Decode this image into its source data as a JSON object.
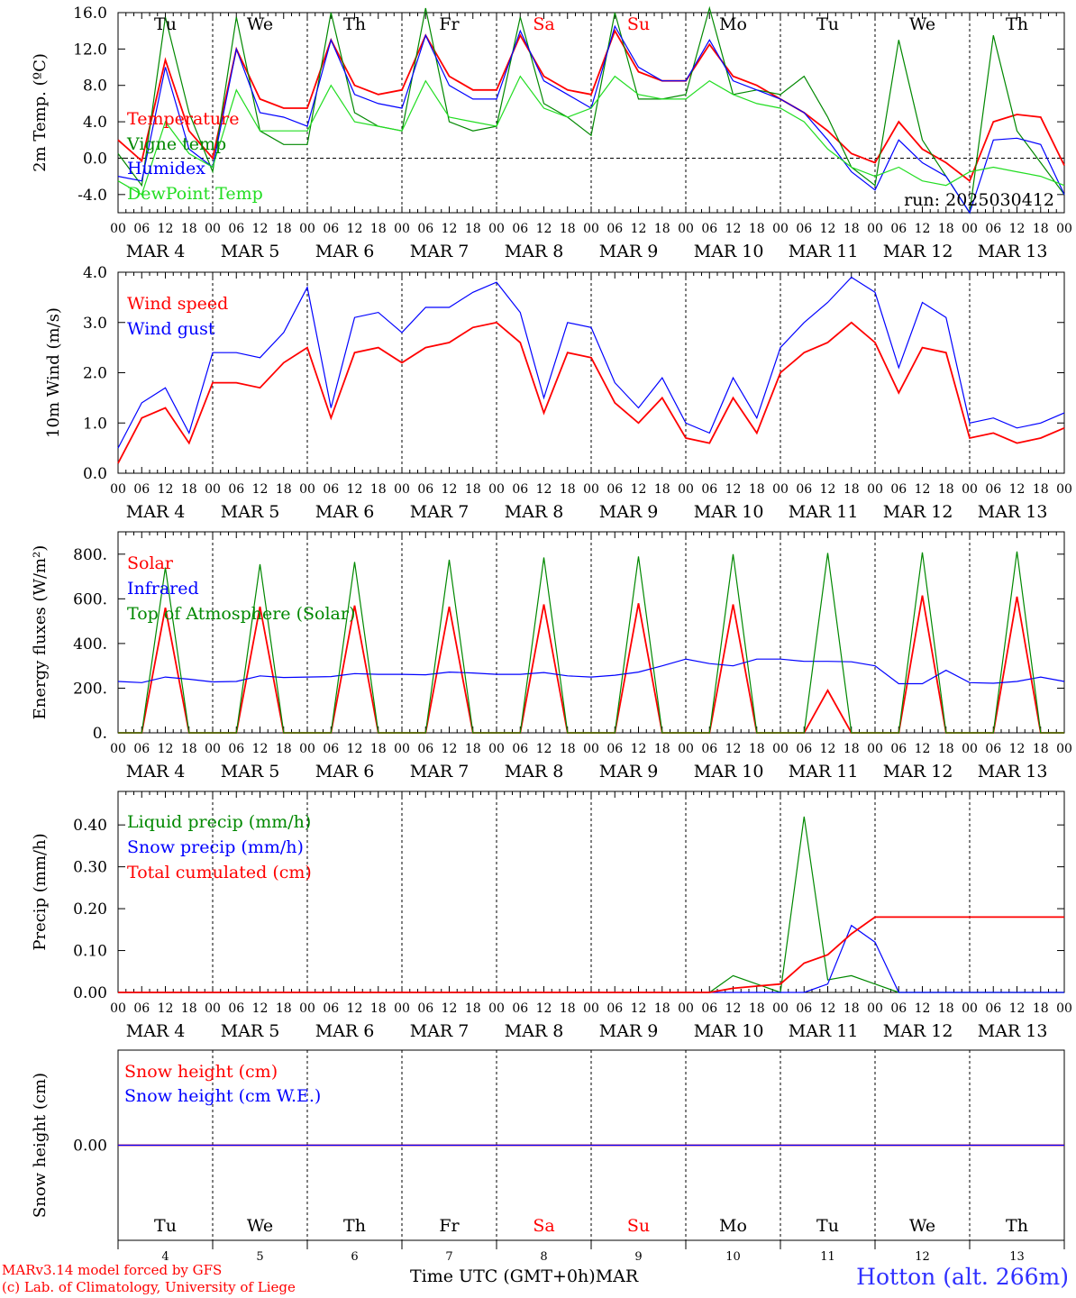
{
  "footer": {
    "model": "MARv3.14 model forced by GFS",
    "lab": "(c) Lab. of Climatology, University of Liege",
    "x_title": "Time UTC (GMT+0h)MAR",
    "station": "Hotton (alt. 266m)"
  },
  "colors": {
    "red": "#ff0000",
    "green": "#008800",
    "blue": "#0000ff",
    "lightgreen": "#22dd22",
    "station": "#3030ff"
  },
  "days": [
    "Tu",
    "We",
    "Th",
    "Fr",
    "Sa",
    "Su",
    "Mo",
    "Tu",
    "We",
    "Th"
  ],
  "weekend_days": [
    "Sa",
    "Su"
  ],
  "dates": [
    "MAR  4",
    "MAR  5",
    "MAR  6",
    "MAR  7",
    "MAR  8",
    "MAR  9",
    "MAR 10",
    "MAR 11",
    "MAR 12",
    "MAR 13"
  ],
  "date_numbers": [
    "4",
    "5",
    "6",
    "7",
    "8",
    "9",
    "10",
    "11",
    "12",
    "13"
  ],
  "hour_ticks": [
    "00",
    "06",
    "12",
    "18"
  ],
  "run_label": "run: 2025030412",
  "chart_data": [
    {
      "type": "line",
      "ylabel": "2m Temp. (ºC)",
      "ylim": [
        -6,
        16
      ],
      "yticks": [
        "16.0",
        "12.0",
        "8.0",
        "4.0",
        "0.0",
        "-4.0"
      ],
      "ytick_values": [
        16,
        12,
        8,
        4,
        0,
        -4
      ],
      "zero_line": true,
      "x": [
        0,
        6,
        12,
        18,
        24,
        30,
        36,
        42,
        48,
        54,
        60,
        66,
        72,
        78,
        84,
        90,
        96,
        102,
        108,
        114,
        120,
        126,
        132,
        138,
        144,
        150,
        156,
        162,
        168,
        174,
        180,
        186,
        192,
        198,
        204,
        210,
        216,
        222,
        228,
        234,
        240
      ],
      "series": [
        {
          "name": "Temperature",
          "color": "red",
          "values": [
            2.0,
            -0.3,
            10.8,
            3.0,
            0.0,
            12.0,
            6.5,
            5.5,
            5.5,
            13.0,
            8.0,
            7.0,
            7.5,
            13.5,
            9.0,
            7.5,
            7.5,
            13.5,
            9.0,
            7.5,
            7.0,
            14.0,
            9.5,
            8.5,
            8.5,
            12.5,
            9.0,
            8.0,
            6.5,
            5.0,
            3.0,
            0.5,
            -0.5,
            4.0,
            1.0,
            -0.5,
            -2.5,
            4.0,
            4.8,
            4.5,
            -0.8
          ]
        },
        {
          "name": "Vigne temp",
          "color": "green",
          "values": [
            0.5,
            -3.0,
            15.5,
            5.0,
            -1.5,
            15.5,
            3.0,
            1.5,
            1.5,
            16.0,
            5.0,
            3.5,
            3.0,
            16.5,
            4.0,
            3.0,
            3.5,
            15.5,
            6.0,
            4.5,
            2.5,
            16.0,
            6.5,
            6.5,
            7.0,
            16.5,
            7.0,
            7.5,
            7.0,
            9.0,
            4.5,
            -1.0,
            -3.0,
            13.0,
            2.0,
            -2.0,
            -6.0,
            13.5,
            3.0,
            -0.5,
            -4.0
          ]
        },
        {
          "name": "Humidex",
          "color": "blue",
          "values": [
            -2.0,
            -2.5,
            10.0,
            1.0,
            -1.0,
            12.0,
            5.0,
            4.5,
            3.5,
            13.0,
            7.0,
            6.0,
            5.5,
            13.5,
            8.0,
            6.5,
            6.5,
            14.0,
            8.5,
            7.0,
            5.5,
            14.5,
            10.0,
            8.5,
            8.5,
            13.0,
            8.5,
            7.5,
            6.5,
            5.0,
            2.0,
            -1.5,
            -3.5,
            2.0,
            -0.5,
            -2.0,
            -6.0,
            2.0,
            2.2,
            1.5,
            -4.0
          ]
        },
        {
          "name": "DewPoint Temp",
          "color": "lightgreen",
          "values": [
            -2.5,
            -4.0,
            4.0,
            0.5,
            -1.0,
            7.5,
            3.0,
            3.0,
            3.0,
            8.0,
            4.0,
            3.5,
            3.0,
            8.5,
            4.5,
            4.0,
            3.5,
            9.0,
            5.5,
            4.5,
            5.5,
            9.0,
            7.0,
            6.5,
            6.5,
            8.5,
            7.0,
            6.0,
            5.5,
            4.0,
            1.0,
            -1.0,
            -2.0,
            -1.0,
            -2.5,
            -3.0,
            -1.5,
            -1.0,
            -1.5,
            -2.0,
            -3.0
          ]
        }
      ]
    },
    {
      "type": "line",
      "ylabel": "10m Wind (m/s)",
      "ylim": [
        0,
        4
      ],
      "yticks": [
        "4.0",
        "3.0",
        "2.0",
        "1.0",
        "0.0"
      ],
      "ytick_values": [
        4,
        3,
        2,
        1,
        0
      ],
      "x": [
        0,
        6,
        12,
        18,
        24,
        30,
        36,
        42,
        48,
        54,
        60,
        66,
        72,
        78,
        84,
        90,
        96,
        102,
        108,
        114,
        120,
        126,
        132,
        138,
        144,
        150,
        156,
        162,
        168,
        174,
        180,
        186,
        192,
        198,
        204,
        210,
        216,
        222,
        228,
        234,
        240
      ],
      "series": [
        {
          "name": "Wind speed",
          "color": "red",
          "values": [
            0.2,
            1.1,
            1.3,
            0.6,
            1.8,
            1.8,
            1.7,
            2.2,
            2.5,
            1.1,
            2.4,
            2.5,
            2.2,
            2.5,
            2.6,
            2.9,
            3.0,
            2.6,
            1.2,
            2.4,
            2.3,
            1.4,
            1.0,
            1.5,
            0.7,
            0.6,
            1.5,
            0.8,
            2.0,
            2.4,
            2.6,
            3.0,
            2.6,
            1.6,
            2.5,
            2.4,
            0.7,
            0.8,
            0.6,
            0.7,
            0.9
          ]
        },
        {
          "name": "Wind gust",
          "color": "blue",
          "values": [
            0.5,
            1.4,
            1.7,
            0.8,
            2.4,
            2.4,
            2.3,
            2.8,
            3.7,
            1.3,
            3.1,
            3.2,
            2.8,
            3.3,
            3.3,
            3.6,
            3.8,
            3.2,
            1.5,
            3.0,
            2.9,
            1.8,
            1.3,
            1.9,
            1.0,
            0.8,
            1.9,
            1.1,
            2.5,
            3.0,
            3.4,
            3.9,
            3.6,
            2.1,
            3.4,
            3.1,
            1.0,
            1.1,
            0.9,
            1.0,
            1.2
          ]
        }
      ]
    },
    {
      "type": "line",
      "ylabel": "Energy fluxes (W/m²)",
      "ylim": [
        0,
        900
      ],
      "yticks": [
        "800.",
        "600.",
        "400.",
        "200.",
        "0."
      ],
      "ytick_values": [
        800,
        600,
        400,
        200,
        0
      ],
      "x": [
        0,
        6,
        12,
        18,
        24,
        30,
        36,
        42,
        48,
        54,
        60,
        66,
        72,
        78,
        84,
        90,
        96,
        102,
        108,
        114,
        120,
        126,
        132,
        138,
        144,
        150,
        156,
        162,
        168,
        174,
        180,
        186,
        192,
        198,
        204,
        210,
        216,
        222,
        228,
        234,
        240
      ],
      "series": [
        {
          "name": "Solar",
          "color": "red",
          "values": [
            0,
            0,
            560,
            0,
            0,
            0,
            565,
            0,
            0,
            0,
            570,
            0,
            0,
            0,
            565,
            0,
            0,
            0,
            575,
            0,
            0,
            0,
            580,
            0,
            0,
            0,
            575,
            0,
            0,
            0,
            190,
            0,
            0,
            0,
            615,
            0,
            0,
            0,
            610,
            0,
            0
          ]
        },
        {
          "name": "Infrared",
          "color": "blue",
          "values": [
            230,
            225,
            250,
            240,
            228,
            230,
            255,
            248,
            250,
            252,
            265,
            262,
            262,
            260,
            272,
            268,
            262,
            262,
            270,
            255,
            250,
            258,
            272,
            300,
            330,
            310,
            300,
            330,
            330,
            320,
            320,
            318,
            300,
            220,
            220,
            280,
            225,
            222,
            230,
            250,
            230
          ]
        },
        {
          "name": "Top of Atmosphere (Solar)",
          "color": "green",
          "values": [
            0,
            0,
            740,
            0,
            0,
            0,
            755,
            0,
            0,
            0,
            765,
            0,
            0,
            0,
            775,
            0,
            0,
            0,
            785,
            0,
            0,
            0,
            790,
            0,
            0,
            0,
            800,
            0,
            0,
            0,
            805,
            0,
            0,
            0,
            808,
            0,
            0,
            0,
            812,
            0,
            0
          ]
        }
      ]
    },
    {
      "type": "line",
      "ylabel": "Precip (mm/h)",
      "ylim": [
        0,
        0.48
      ],
      "yticks": [
        "0.40",
        "0.30",
        "0.20",
        "0.10",
        "0.00"
      ],
      "ytick_values": [
        0.4,
        0.3,
        0.2,
        0.1,
        0
      ],
      "x": [
        0,
        6,
        12,
        18,
        24,
        30,
        36,
        42,
        48,
        54,
        60,
        66,
        72,
        78,
        84,
        90,
        96,
        102,
        108,
        114,
        120,
        126,
        132,
        138,
        144,
        150,
        156,
        162,
        168,
        174,
        180,
        186,
        192,
        198,
        204,
        210,
        216,
        222,
        228,
        234,
        240
      ],
      "series": [
        {
          "name": "Liquid precip (mm/h)",
          "color": "green",
          "values": [
            0,
            0,
            0,
            0,
            0,
            0,
            0,
            0,
            0,
            0,
            0,
            0,
            0,
            0,
            0,
            0,
            0,
            0,
            0,
            0,
            0,
            0,
            0,
            0,
            0,
            0,
            0.04,
            0.02,
            0.0,
            0.42,
            0.03,
            0.04,
            0.02,
            0,
            0,
            0,
            0,
            0,
            0,
            0,
            0
          ]
        },
        {
          "name": "Snow precip (mm/h)",
          "color": "blue",
          "values": [
            0,
            0,
            0,
            0,
            0,
            0,
            0,
            0,
            0,
            0,
            0,
            0,
            0,
            0,
            0,
            0,
            0,
            0,
            0,
            0,
            0,
            0,
            0,
            0,
            0,
            0,
            0,
            0,
            0,
            0,
            0.02,
            0.16,
            0.12,
            0,
            0,
            0,
            0,
            0,
            0,
            0,
            0
          ]
        },
        {
          "name": "Total cumulated (cm)",
          "color": "red",
          "values": [
            0,
            0,
            0,
            0,
            0,
            0,
            0,
            0,
            0,
            0,
            0,
            0,
            0,
            0,
            0,
            0,
            0,
            0,
            0,
            0,
            0,
            0,
            0,
            0,
            0,
            0,
            0.01,
            0.015,
            0.02,
            0.07,
            0.09,
            0.14,
            0.18,
            0.18,
            0.18,
            0.18,
            0.18,
            0.18,
            0.18,
            0.18,
            0.18
          ]
        }
      ]
    },
    {
      "type": "line",
      "ylabel": "Snow height (cm)",
      "ylim": [
        -1,
        1
      ],
      "yticks": [
        "0.00"
      ],
      "ytick_values": [
        0
      ],
      "x": [
        0,
        240
      ],
      "series": [
        {
          "name": "Snow height (cm)",
          "color": "red",
          "values": [
            0,
            0
          ]
        },
        {
          "name": "Snow height (cm W.E.)",
          "color": "blue",
          "values": [
            0,
            0
          ]
        }
      ]
    }
  ]
}
